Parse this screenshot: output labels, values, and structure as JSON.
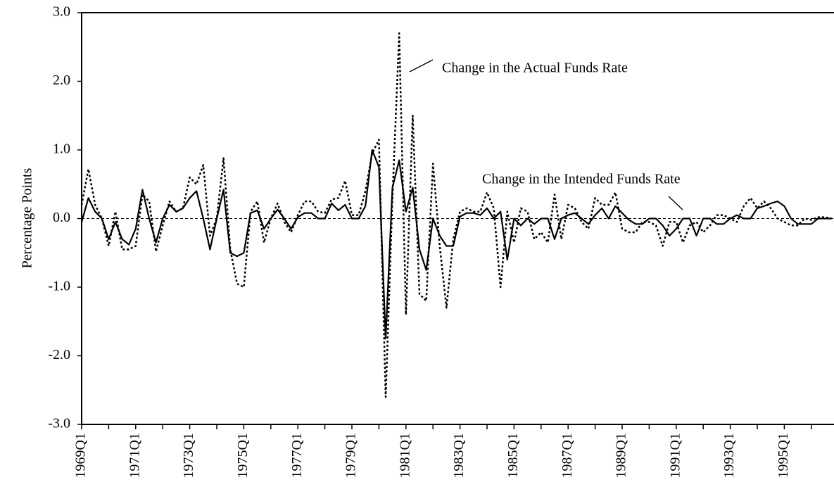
{
  "chart_data": {
    "type": "line",
    "y_label": "Percentage Points",
    "annotations": [
      "Change in the Actual Funds Rate",
      "Change in the Intended Funds Rate"
    ],
    "categories": [
      "1969Q1",
      null,
      null,
      null,
      null,
      null,
      null,
      null,
      "1971Q1",
      null,
      null,
      null,
      null,
      null,
      null,
      null,
      "1973Q1",
      null,
      null,
      null,
      null,
      null,
      null,
      null,
      "1975Q1",
      null,
      null,
      null,
      null,
      null,
      null,
      null,
      "1977Q1",
      null,
      null,
      null,
      null,
      null,
      null,
      null,
      "1979Q1",
      null,
      null,
      null,
      null,
      null,
      null,
      null,
      "1981Q1",
      null,
      null,
      null,
      null,
      null,
      null,
      null,
      "1983Q1",
      null,
      null,
      null,
      null,
      null,
      null,
      null,
      "1985Q1",
      null,
      null,
      null,
      null,
      null,
      null,
      null,
      "1987Q1",
      null,
      null,
      null,
      null,
      null,
      null,
      null,
      "1989Q1",
      null,
      null,
      null,
      null,
      null,
      null,
      null,
      "1991Q1",
      null,
      null,
      null,
      null,
      null,
      null,
      null,
      "1993Q1",
      null,
      null,
      null,
      null,
      null,
      null,
      null,
      "1995Q1",
      null,
      null,
      null,
      null,
      null,
      null,
      null
    ],
    "series": [
      {
        "color": "#000000",
        "style": "solid",
        "values": [
          -0.05,
          0.3,
          0.1,
          0.0,
          -0.3,
          -0.05,
          -0.3,
          -0.38,
          -0.15,
          0.42,
          0.0,
          -0.35,
          0.0,
          0.2,
          0.1,
          0.15,
          0.3,
          0.4,
          0.0,
          -0.45,
          0.0,
          0.42,
          -0.5,
          -0.55,
          -0.5,
          0.08,
          0.12,
          -0.15,
          0.0,
          0.13,
          0.0,
          -0.15,
          0.02,
          0.08,
          0.08,
          0.0,
          0.0,
          0.22,
          0.12,
          0.2,
          0.0,
          0.0,
          0.18,
          1.0,
          0.75,
          -1.75,
          0.45,
          0.85,
          0.1,
          0.45,
          -0.45,
          -0.75,
          0.0,
          -0.25,
          -0.4,
          -0.4,
          0.03,
          0.08,
          0.08,
          0.05,
          0.15,
          0.0,
          0.1,
          -0.6,
          0.0,
          -0.1,
          0.0,
          -0.08,
          0.0,
          0.0,
          -0.3,
          0.0,
          0.05,
          0.08,
          0.0,
          -0.08,
          0.05,
          0.15,
          0.0,
          0.18,
          0.08,
          -0.02,
          -0.08,
          -0.08,
          0.0,
          0.0,
          -0.1,
          -0.25,
          -0.15,
          0.0,
          0.0,
          -0.25,
          0.0,
          0.0,
          -0.08,
          -0.08,
          0.0,
          0.05,
          0.0,
          0.0,
          0.15,
          0.18,
          0.22,
          0.25,
          0.18,
          0.0,
          -0.08,
          -0.08,
          -0.08,
          0.0,
          0.0,
          0.0
        ]
      },
      {
        "color": "#000000",
        "style": "dotted",
        "values": [
          0.2,
          0.72,
          0.2,
          0.0,
          -0.4,
          0.1,
          -0.45,
          -0.45,
          -0.4,
          0.35,
          0.25,
          -0.48,
          -0.1,
          0.25,
          0.1,
          0.15,
          0.6,
          0.5,
          0.78,
          -0.25,
          0.0,
          0.88,
          -0.45,
          -0.95,
          -1.0,
          0.1,
          0.25,
          -0.35,
          0.0,
          0.22,
          -0.05,
          -0.2,
          0.05,
          0.25,
          0.25,
          0.1,
          0.08,
          0.28,
          0.3,
          0.55,
          0.05,
          0.05,
          0.4,
          0.95,
          1.15,
          -2.6,
          0.3,
          2.7,
          -1.4,
          1.5,
          -1.1,
          -1.2,
          0.8,
          -0.4,
          -1.3,
          -0.3,
          0.1,
          0.15,
          0.1,
          0.1,
          0.38,
          0.15,
          -1.0,
          0.1,
          -0.35,
          0.15,
          0.1,
          -0.3,
          -0.2,
          -0.35,
          0.35,
          -0.3,
          0.2,
          0.15,
          -0.05,
          -0.15,
          0.3,
          0.2,
          0.2,
          0.38,
          -0.15,
          -0.2,
          -0.2,
          -0.05,
          -0.05,
          -0.1,
          -0.4,
          -0.05,
          -0.05,
          -0.35,
          -0.1,
          -0.05,
          -0.2,
          -0.1,
          0.05,
          0.05,
          0.0,
          -0.05,
          0.18,
          0.3,
          0.15,
          0.25,
          0.15,
          0.0,
          -0.05,
          -0.1,
          -0.1,
          0.0,
          -0.02,
          0.02,
          0.02,
          0.0
        ]
      }
    ],
    "ylim": [
      -3,
      3
    ],
    "yticks": [
      {
        "value": -3,
        "label": "-3.0"
      },
      {
        "value": -2,
        "label": "-2.0"
      },
      {
        "value": -1,
        "label": "-1.0"
      },
      {
        "value": 0,
        "label": "0.0"
      },
      {
        "value": 1,
        "label": "1.0"
      },
      {
        "value": 2,
        "label": "2.0"
      },
      {
        "value": 3,
        "label": "3.0"
      }
    ]
  }
}
